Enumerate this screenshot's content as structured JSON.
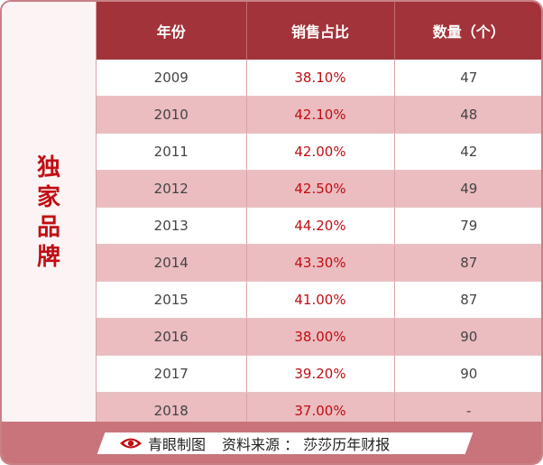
{
  "side_label": [
    "独",
    "家",
    "品",
    "牌"
  ],
  "table": {
    "headers": [
      "年份",
      "销售占比",
      "数量（个）"
    ],
    "rows": [
      {
        "year": "2009",
        "share": "38.10%",
        "count": "47"
      },
      {
        "year": "2010",
        "share": "42.10%",
        "count": "48"
      },
      {
        "year": "2011",
        "share": "42.00%",
        "count": "42"
      },
      {
        "year": "2012",
        "share": "42.50%",
        "count": "49"
      },
      {
        "year": "2013",
        "share": "44.20%",
        "count": "79"
      },
      {
        "year": "2014",
        "share": "43.30%",
        "count": "87"
      },
      {
        "year": "2015",
        "share": "41.00%",
        "count": "87"
      },
      {
        "year": "2016",
        "share": "38.00%",
        "count": "90"
      },
      {
        "year": "2017",
        "share": "39.20%",
        "count": "90"
      },
      {
        "year": "2018",
        "share": "37.00%",
        "count": "-"
      }
    ]
  },
  "footer": {
    "brand": "青眼制图",
    "source": "资料来源 ： 莎莎历年财报",
    "icon": "eye-icon"
  },
  "colors": {
    "header_bg": "#a3333a",
    "accent_red": "#c00d12",
    "stripe": "#ebbcc0",
    "footer_bg": "#c9737b"
  }
}
